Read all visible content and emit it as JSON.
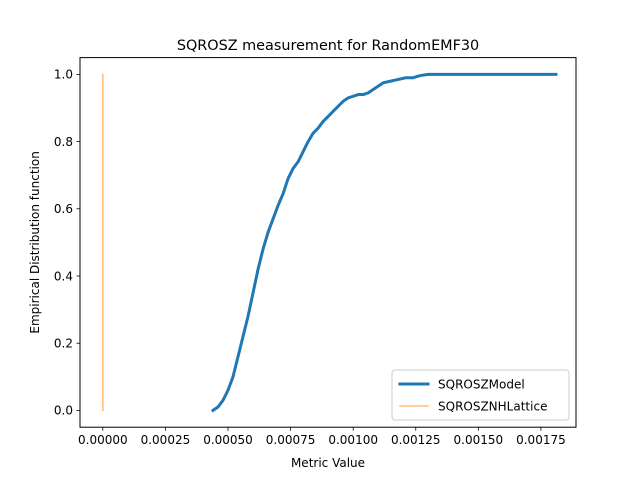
{
  "chart_data": {
    "type": "line",
    "title": "SQROSZ measurement for RandomEMF30",
    "xlabel": "Metric Value",
    "ylabel": "Empirical Distribution function",
    "xlim": [
      -9.12e-05,
      0.0018901
    ],
    "ylim": [
      -0.05,
      1.05
    ],
    "xticks": [
      0.0,
      0.00025,
      0.0005,
      0.00075,
      0.001,
      0.00125,
      0.0015,
      0.00175
    ],
    "xtick_labels": [
      "0.00000",
      "0.00025",
      "0.00050",
      "0.00075",
      "0.00100",
      "0.00125",
      "0.00150",
      "0.00175"
    ],
    "yticks": [
      0.0,
      0.2,
      0.4,
      0.6,
      0.8,
      1.0
    ],
    "ytick_labels": [
      "0.0",
      "0.2",
      "0.4",
      "0.6",
      "0.8",
      "1.0"
    ],
    "grid": false,
    "legend_position": "lower right",
    "series": [
      {
        "name": "SQROSZModel",
        "color": "#1f77b4",
        "line_width": 3,
        "x": [
          0.00044,
          0.00046,
          0.00048,
          0.0005,
          0.00052,
          0.00054,
          0.00056,
          0.00058,
          0.0006,
          0.00062,
          0.00064,
          0.00066,
          0.00068,
          0.0007,
          0.00072,
          0.00074,
          0.00076,
          0.00078,
          0.0008,
          0.00082,
          0.00084,
          0.00086,
          0.00088,
          0.0009,
          0.00092,
          0.00094,
          0.00096,
          0.00098,
          0.001,
          0.00102,
          0.00104,
          0.00106,
          0.00108,
          0.0011,
          0.00112,
          0.00115,
          0.00118,
          0.00121,
          0.00124,
          0.00126,
          0.00128,
          0.0013,
          0.00132,
          0.00135,
          0.0014,
          0.00145,
          0.0015,
          0.0016,
          0.0017,
          0.00181
        ],
        "y": [
          0.0,
          0.01,
          0.03,
          0.06,
          0.1,
          0.16,
          0.22,
          0.28,
          0.35,
          0.42,
          0.48,
          0.53,
          0.57,
          0.61,
          0.645,
          0.69,
          0.72,
          0.74,
          0.77,
          0.8,
          0.825,
          0.84,
          0.86,
          0.875,
          0.89,
          0.905,
          0.92,
          0.93,
          0.935,
          0.94,
          0.94,
          0.945,
          0.955,
          0.965,
          0.975,
          0.98,
          0.985,
          0.99,
          0.99,
          0.995,
          0.998,
          1.0,
          1.0,
          1.0,
          1.0,
          1.0,
          1.0,
          1.0,
          1.0,
          1.0
        ]
      },
      {
        "name": "SQROSZNHLattice",
        "color": "#ffbb78",
        "line_width": 1.5,
        "x": [
          0.0,
          0.0
        ],
        "y": [
          0.0,
          1.0
        ]
      }
    ]
  }
}
